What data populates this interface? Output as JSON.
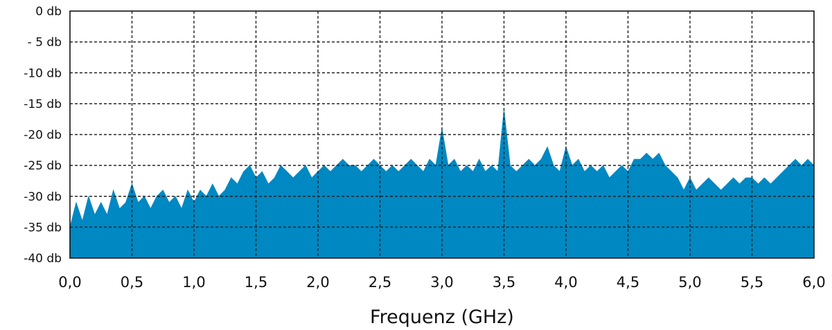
{
  "chart_data": {
    "type": "area",
    "title": "",
    "xlabel": "Frequenz (GHz)",
    "ylabel": "",
    "xlim": [
      0,
      6
    ],
    "ylim": [
      -40,
      0
    ],
    "grid": true,
    "legend": "none",
    "fill_color": "#0088c2",
    "x_ticks": [
      "0,0",
      "0,5",
      "1,0",
      "1,5",
      "2,0",
      "2,5",
      "3,0",
      "3,5",
      "4,0",
      "4,5",
      "5,0",
      "5,5",
      "6,0"
    ],
    "y_ticks": [
      "0 db",
      "- 5 db",
      "-10 db",
      "-15 db",
      "-20 db",
      "-25 db",
      "-30 db",
      "-35 db",
      "-40 db"
    ],
    "y_tick_values": [
      0,
      -5,
      -10,
      -15,
      -20,
      -25,
      -30,
      -35,
      -40
    ],
    "x_tick_values": [
      0,
      0.5,
      1.0,
      1.5,
      2.0,
      2.5,
      3.0,
      3.5,
      4.0,
      4.5,
      5.0,
      5.5,
      6.0
    ],
    "series": [
      {
        "points": [
          [
            0.0,
            -35
          ],
          [
            0.05,
            -31
          ],
          [
            0.1,
            -34
          ],
          [
            0.15,
            -30
          ],
          [
            0.2,
            -33
          ],
          [
            0.25,
            -31
          ],
          [
            0.3,
            -33
          ],
          [
            0.35,
            -29
          ],
          [
            0.4,
            -32
          ],
          [
            0.45,
            -31
          ],
          [
            0.5,
            -28
          ],
          [
            0.55,
            -31
          ],
          [
            0.6,
            -30
          ],
          [
            0.65,
            -32
          ],
          [
            0.7,
            -30
          ],
          [
            0.75,
            -29
          ],
          [
            0.8,
            -31
          ],
          [
            0.85,
            -30
          ],
          [
            0.9,
            -32
          ],
          [
            0.95,
            -29
          ],
          [
            1.0,
            -31
          ],
          [
            1.05,
            -29
          ],
          [
            1.1,
            -30
          ],
          [
            1.15,
            -28
          ],
          [
            1.2,
            -30
          ],
          [
            1.25,
            -29
          ],
          [
            1.3,
            -27
          ],
          [
            1.35,
            -28
          ],
          [
            1.4,
            -26
          ],
          [
            1.45,
            -25
          ],
          [
            1.5,
            -27
          ],
          [
            1.55,
            -26
          ],
          [
            1.6,
            -28
          ],
          [
            1.65,
            -27
          ],
          [
            1.7,
            -25
          ],
          [
            1.75,
            -26
          ],
          [
            1.8,
            -27
          ],
          [
            1.85,
            -26
          ],
          [
            1.9,
            -25
          ],
          [
            1.95,
            -27
          ],
          [
            2.0,
            -26
          ],
          [
            2.05,
            -25
          ],
          [
            2.1,
            -26
          ],
          [
            2.15,
            -25
          ],
          [
            2.2,
            -24
          ],
          [
            2.25,
            -25
          ],
          [
            2.3,
            -25
          ],
          [
            2.35,
            -26
          ],
          [
            2.4,
            -25
          ],
          [
            2.45,
            -24
          ],
          [
            2.5,
            -25
          ],
          [
            2.55,
            -26
          ],
          [
            2.6,
            -25
          ],
          [
            2.65,
            -26
          ],
          [
            2.7,
            -25
          ],
          [
            2.75,
            -24
          ],
          [
            2.8,
            -25
          ],
          [
            2.85,
            -26
          ],
          [
            2.9,
            -24
          ],
          [
            2.95,
            -25
          ],
          [
            3.0,
            -19
          ],
          [
            3.05,
            -25
          ],
          [
            3.1,
            -24
          ],
          [
            3.15,
            -26
          ],
          [
            3.2,
            -25
          ],
          [
            3.25,
            -26
          ],
          [
            3.3,
            -24
          ],
          [
            3.35,
            -26
          ],
          [
            3.4,
            -25
          ],
          [
            3.45,
            -26
          ],
          [
            3.5,
            -16
          ],
          [
            3.55,
            -25
          ],
          [
            3.6,
            -26
          ],
          [
            3.65,
            -25
          ],
          [
            3.7,
            -24
          ],
          [
            3.75,
            -25
          ],
          [
            3.8,
            -24
          ],
          [
            3.85,
            -22
          ],
          [
            3.9,
            -25
          ],
          [
            3.95,
            -26
          ],
          [
            4.0,
            -22
          ],
          [
            4.05,
            -25
          ],
          [
            4.1,
            -24
          ],
          [
            4.15,
            -26
          ],
          [
            4.2,
            -25
          ],
          [
            4.25,
            -26
          ],
          [
            4.3,
            -25
          ],
          [
            4.35,
            -27
          ],
          [
            4.4,
            -26
          ],
          [
            4.45,
            -25
          ],
          [
            4.5,
            -26
          ],
          [
            4.55,
            -24
          ],
          [
            4.6,
            -24
          ],
          [
            4.65,
            -23
          ],
          [
            4.7,
            -24
          ],
          [
            4.75,
            -23
          ],
          [
            4.8,
            -25
          ],
          [
            4.85,
            -26
          ],
          [
            4.9,
            -27
          ],
          [
            4.95,
            -29
          ],
          [
            5.0,
            -27
          ],
          [
            5.05,
            -29
          ],
          [
            5.1,
            -28
          ],
          [
            5.15,
            -27
          ],
          [
            5.2,
            -28
          ],
          [
            5.25,
            -29
          ],
          [
            5.3,
            -28
          ],
          [
            5.35,
            -27
          ],
          [
            5.4,
            -28
          ],
          [
            5.45,
            -27
          ],
          [
            5.5,
            -27
          ],
          [
            5.55,
            -28
          ],
          [
            5.6,
            -27
          ],
          [
            5.65,
            -28
          ],
          [
            5.7,
            -27
          ],
          [
            5.75,
            -26
          ],
          [
            5.8,
            -25
          ],
          [
            5.85,
            -24
          ],
          [
            5.9,
            -25
          ],
          [
            5.95,
            -24
          ],
          [
            6.0,
            -25
          ]
        ]
      }
    ]
  }
}
